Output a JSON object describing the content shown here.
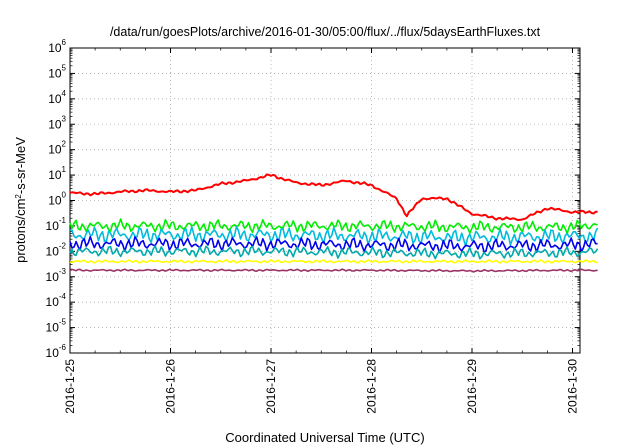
{
  "chart_data": {
    "type": "line",
    "title": "/data/run/goesPlots/archive/2016-01-30/05:00/flux/../flux/5daysEarthFluxes.txt",
    "xlabel": "Coordinated Universal Time (UTC)",
    "ylabel": "protons/cm²-s-sr-MeV",
    "ylabel_base": "protons/cm",
    "ylabel_sup": "2",
    "ylabel_rest": "-s-sr-MeV",
    "y_scale": "log",
    "ylim": [
      1e-06,
      1000000.0
    ],
    "y_ticks": [
      {
        "base": "10",
        "exp": "-6"
      },
      {
        "base": "10",
        "exp": "-5"
      },
      {
        "base": "10",
        "exp": "-4"
      },
      {
        "base": "10",
        "exp": "-3"
      },
      {
        "base": "10",
        "exp": "-2"
      },
      {
        "base": "10",
        "exp": "-1"
      },
      {
        "base": "10",
        "exp": "0"
      },
      {
        "base": "10",
        "exp": "1"
      },
      {
        "base": "10",
        "exp": "2"
      },
      {
        "base": "10",
        "exp": "3"
      },
      {
        "base": "10",
        "exp": "4"
      },
      {
        "base": "10",
        "exp": "5"
      },
      {
        "base": "10",
        "exp": "6"
      }
    ],
    "xlim": [
      "2016-01-25",
      "2016-01-30 06:00"
    ],
    "x_ticks": [
      "2016-1-25",
      "2016-1-26",
      "2016-1-27",
      "2016-1-28",
      "2016-1-29",
      "2016-1-30"
    ],
    "grid": true,
    "series": [
      {
        "color": "#ff0000",
        "x_days": [
          0.0,
          0.25,
          0.5,
          0.75,
          1.0,
          1.25,
          1.5,
          1.75,
          2.0,
          2.25,
          2.5,
          2.75,
          3.0,
          3.25,
          3.35,
          3.5,
          3.75,
          4.0,
          4.25,
          4.5,
          4.75,
          5.0,
          5.25
        ],
        "values": [
          2.0,
          1.8,
          2.2,
          2.5,
          2.2,
          2.5,
          4.5,
          6.0,
          10.0,
          5.0,
          4.0,
          6.0,
          4.0,
          1.2,
          0.25,
          1.2,
          1.2,
          0.3,
          0.2,
          0.18,
          0.5,
          0.35,
          0.35
        ]
      },
      {
        "color": "#00ee00",
        "x_days": [
          0,
          1,
          2,
          3,
          4,
          5,
          5.25
        ],
        "values": [
          0.1,
          0.1,
          0.1,
          0.1,
          0.09,
          0.09,
          0.12
        ]
      },
      {
        "color": "#00bbdd",
        "x_days": [
          0,
          1,
          2,
          3,
          4,
          5,
          5.25
        ],
        "values": [
          0.045,
          0.045,
          0.045,
          0.04,
          0.035,
          0.04,
          0.04
        ]
      },
      {
        "color": "#0000ee",
        "x_days": [
          0,
          1,
          2,
          3,
          4,
          5,
          5.25
        ],
        "values": [
          0.02,
          0.02,
          0.02,
          0.018,
          0.016,
          0.018,
          0.02
        ]
      },
      {
        "color": "#00aaaa",
        "x_days": [
          0,
          1,
          2,
          3,
          4,
          5,
          5.25
        ],
        "values": [
          0.01,
          0.01,
          0.01,
          0.009,
          0.008,
          0.009,
          0.01
        ]
      },
      {
        "color": "#ffff00",
        "x_days": [
          0,
          1,
          2,
          3,
          4,
          5,
          5.25
        ],
        "values": [
          0.004,
          0.004,
          0.004,
          0.004,
          0.004,
          0.004,
          0.004
        ]
      },
      {
        "color": "#993366",
        "x_days": [
          0,
          1,
          2,
          3,
          4,
          5,
          5.25
        ],
        "values": [
          0.0018,
          0.0018,
          0.0018,
          0.0018,
          0.0017,
          0.0018,
          0.0018
        ]
      }
    ]
  }
}
